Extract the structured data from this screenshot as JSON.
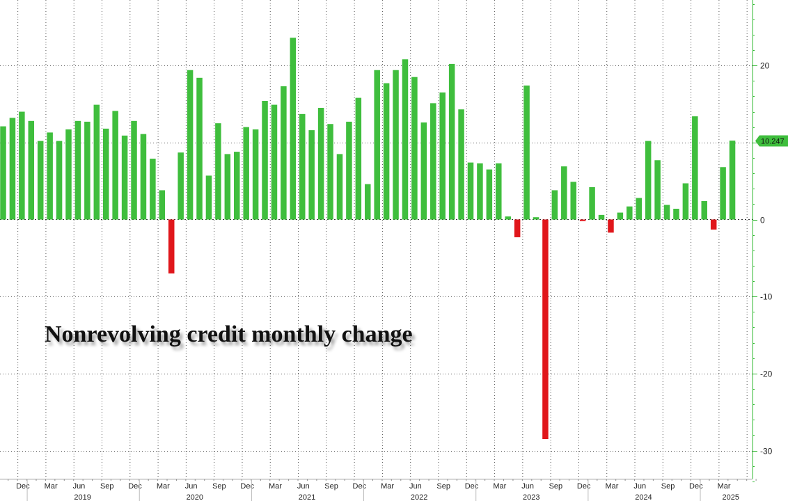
{
  "chart_data": {
    "type": "bar",
    "title": "Nonrevolving credit monthly change",
    "ylim": [
      -34,
      29
    ],
    "yticks": [
      20,
      10,
      0,
      -10,
      -20,
      -30
    ],
    "grid": true,
    "last_value_label": "10.247",
    "values": [
      12.1,
      13.2,
      14.0,
      12.8,
      10.2,
      11.3,
      10.2,
      11.7,
      12.8,
      12.7,
      14.9,
      11.8,
      14.1,
      10.9,
      12.8,
      11.1,
      7.9,
      3.8,
      -7.0,
      8.7,
      19.4,
      18.4,
      5.7,
      12.5,
      8.5,
      8.8,
      12.0,
      11.7,
      15.4,
      14.9,
      17.3,
      23.6,
      13.7,
      11.6,
      14.5,
      12.4,
      8.5,
      12.7,
      15.8,
      4.6,
      19.4,
      17.7,
      19.4,
      20.8,
      18.5,
      12.6,
      15.1,
      16.5,
      20.2,
      14.3,
      7.4,
      7.3,
      6.5,
      7.3,
      0.4,
      -2.3,
      17.4,
      0.3,
      -28.5,
      3.8,
      6.9,
      4.9,
      -0.2,
      4.2,
      0.6,
      -1.7,
      0.9,
      1.7,
      2.8,
      10.2,
      7.7,
      1.9,
      1.4,
      4.7,
      13.4,
      2.4,
      -1.3,
      6.8,
      10.247
    ],
    "month_labels": [
      "Dec",
      "Mar",
      "Jun",
      "Sep",
      "Dec",
      "Mar",
      "Jun",
      "Sep",
      "Dec",
      "Mar",
      "Jun",
      "Sep",
      "Dec",
      "Mar",
      "Jun",
      "Sep",
      "Dec",
      "Mar",
      "Jun",
      "Sep",
      "Dec",
      "Mar",
      "Jun",
      "Sep",
      "Dec",
      "Mar"
    ],
    "year_labels": [
      "2019",
      "2020",
      "2021",
      "2022",
      "2023",
      "2024",
      "2025"
    ],
    "colors": {
      "positive": "#3fbe3d",
      "negative": "#e0161b",
      "axis": "#2fb82f",
      "grid": "#555555",
      "label_bg": "#3fbe3d"
    }
  }
}
